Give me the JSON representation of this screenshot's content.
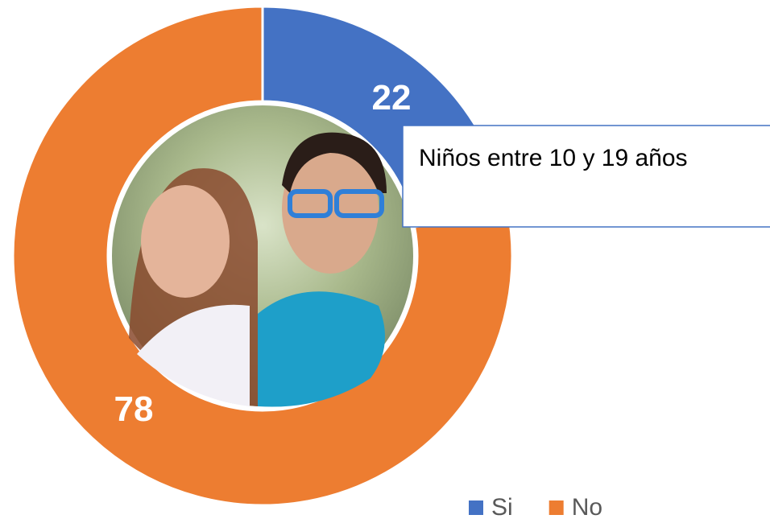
{
  "chart_data": {
    "type": "pie",
    "donut": true,
    "categories": [
      "Si",
      "No"
    ],
    "values": [
      22,
      78
    ],
    "colors": [
      "#4472c4",
      "#ed7d31"
    ],
    "annotation": "Niños entre 10 y 19 años",
    "legend": "bottom-right"
  }
}
